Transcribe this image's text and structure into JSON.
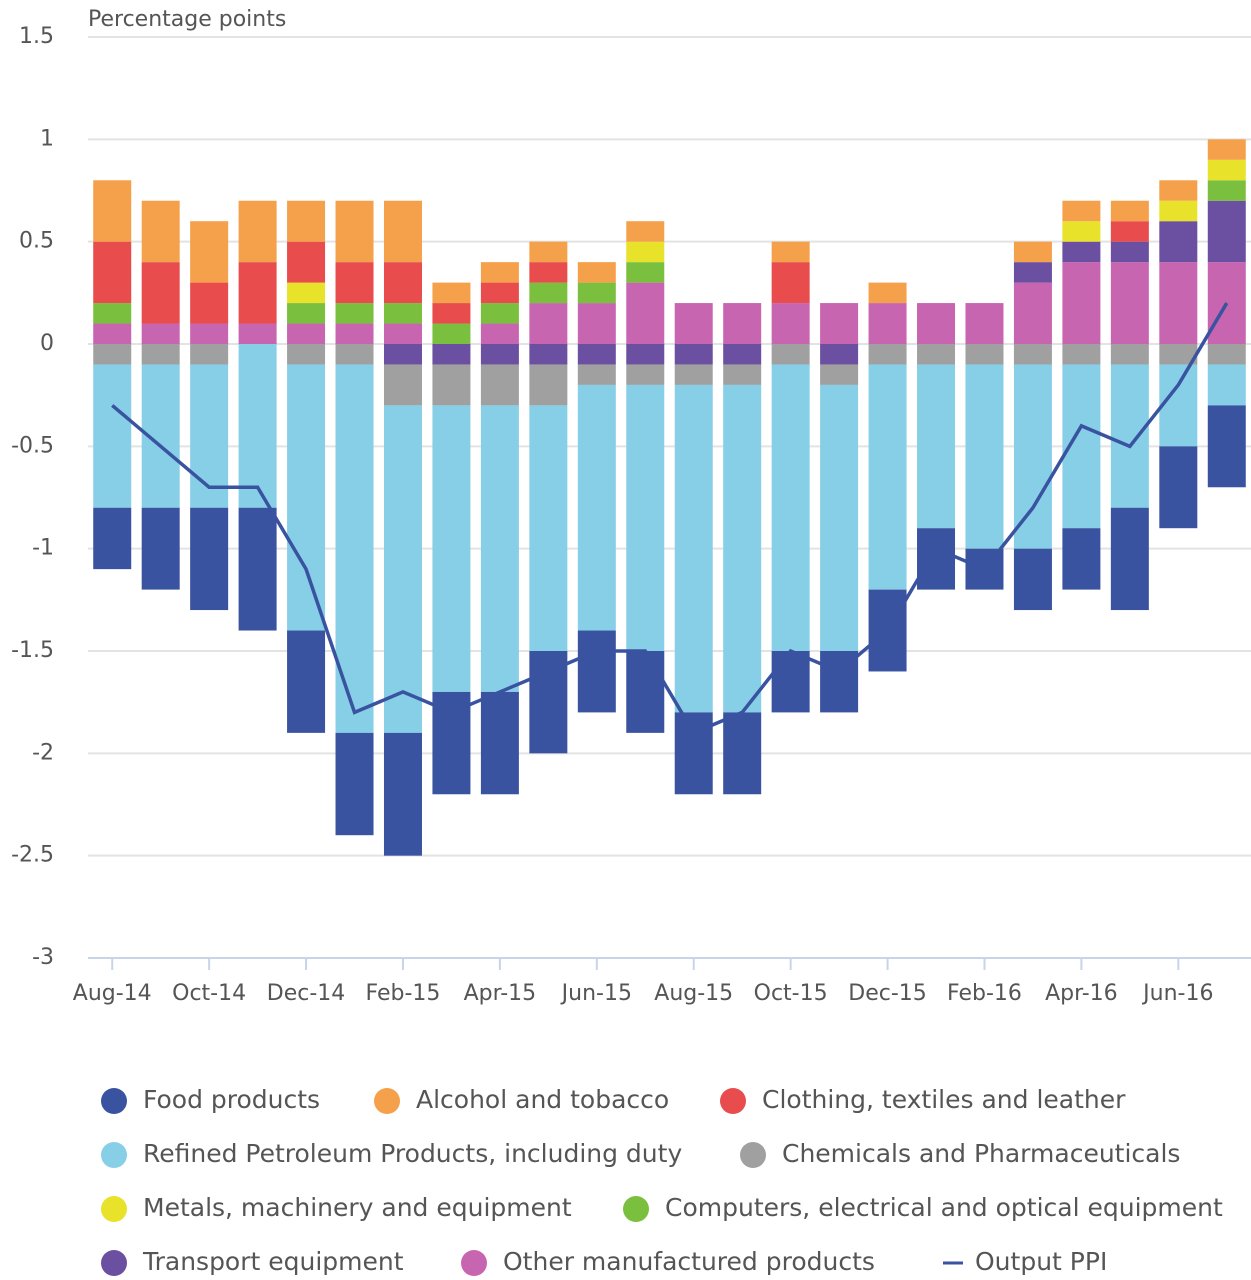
{
  "chart_data": {
    "type": "bar",
    "stacked": true,
    "ylabel": "Percentage points",
    "categories": [
      "Aug-14",
      null,
      "Oct-14",
      null,
      "Dec-14",
      null,
      "Feb-15",
      null,
      "Apr-15",
      null,
      "Jun-15",
      null,
      "Aug-15",
      null,
      "Oct-15",
      null,
      "Dec-15",
      null,
      "Feb-16",
      null,
      "Apr-16",
      null,
      "Jun-16",
      null
    ],
    "ylim": [
      -3,
      1.5
    ],
    "yticks": [
      -3,
      -2.5,
      -2,
      -1.5,
      -1,
      -0.5,
      0,
      0.5,
      1,
      1.5
    ],
    "grid": true,
    "series": [
      {
        "name": "Food products",
        "color": "#3a53a0",
        "values": [
          -0.3,
          -0.4,
          -0.5,
          -0.6,
          -0.5,
          -0.5,
          -0.6,
          -0.5,
          -0.5,
          -0.5,
          -0.4,
          -0.4,
          -0.4,
          -0.4,
          -0.3,
          -0.3,
          -0.4,
          -0.3,
          -0.2,
          -0.3,
          -0.3,
          -0.5,
          -0.4,
          -0.4
        ]
      },
      {
        "name": "Alcohol and tobacco",
        "color": "#f5a04a",
        "values": [
          0.3,
          0.3,
          0.3,
          0.3,
          0.2,
          0.3,
          0.3,
          0.1,
          0.1,
          0.1,
          0.1,
          0.1,
          0,
          0,
          0.1,
          0,
          0.1,
          0,
          0,
          0.1,
          0.1,
          0.1,
          0.1,
          0.1
        ]
      },
      {
        "name": "Clothing, textiles and leather",
        "color": "#e84c4c",
        "values": [
          0.3,
          0.3,
          0.2,
          0.3,
          0.2,
          0.2,
          0.2,
          0.1,
          0.1,
          0.1,
          0,
          0,
          0,
          0,
          0.2,
          0,
          0,
          0,
          0,
          0,
          0,
          0.1,
          0,
          0
        ]
      },
      {
        "name": "Refined Petroleum Products, including duty",
        "color": "#86cfe6",
        "values": [
          -0.7,
          -0.7,
          -0.7,
          -0.8,
          -1.3,
          -1.8,
          -1.6,
          -1.4,
          -1.4,
          -1.2,
          -1.2,
          -1.3,
          -1.6,
          -1.6,
          -1.4,
          -1.3,
          -1.1,
          -0.8,
          -0.9,
          -0.9,
          -0.8,
          -0.7,
          -0.4,
          -0.2
        ]
      },
      {
        "name": "Chemicals and Pharmaceuticals",
        "color": "#a0a0a0",
        "values": [
          -0.1,
          -0.1,
          -0.1,
          0,
          -0.1,
          -0.1,
          -0.2,
          -0.2,
          -0.2,
          -0.2,
          -0.1,
          -0.1,
          -0.1,
          -0.1,
          -0.1,
          -0.1,
          -0.1,
          -0.1,
          -0.1,
          -0.1,
          -0.1,
          -0.1,
          -0.1,
          -0.1
        ]
      },
      {
        "name": "Metals, machinery and equipment",
        "color": "#e8e22a",
        "values": [
          0,
          0,
          0,
          0,
          0.1,
          0,
          0,
          0,
          0,
          0,
          0,
          0.1,
          0,
          0,
          0,
          0,
          0,
          0,
          0,
          0,
          0.1,
          0,
          0.1,
          0.1
        ]
      },
      {
        "name": "Computers, electrical and optical equipment",
        "color": "#7bbf3e",
        "values": [
          0.1,
          0,
          0,
          0,
          0.1,
          0.1,
          0.1,
          0.1,
          0.1,
          0.1,
          0.1,
          0.1,
          0,
          0,
          0,
          0,
          0,
          0,
          0,
          0,
          0,
          0,
          0,
          0.1
        ]
      },
      {
        "name": "Transport equipment",
        "color": "#6b4fa0",
        "values": [
          0,
          0,
          0,
          0,
          0,
          0,
          -0.1,
          -0.1,
          -0.1,
          -0.1,
          -0.1,
          -0.1,
          -0.1,
          -0.1,
          0,
          -0.1,
          0,
          0,
          0,
          0.1,
          0.1,
          0.1,
          0.2,
          0.3
        ]
      },
      {
        "name": "Other manufactured products",
        "color": "#c865b0",
        "values": [
          0.1,
          0.1,
          0.1,
          0.1,
          0.1,
          0.1,
          0.1,
          0,
          0.1,
          0.2,
          0.2,
          0.3,
          0.2,
          0.2,
          0.2,
          0.2,
          0.2,
          0.2,
          0.2,
          0.3,
          0.4,
          0.4,
          0.4,
          0.4
        ]
      },
      {
        "name": "Output PPI",
        "type": "line",
        "color": "#3a53a0",
        "values": [
          -0.3,
          -0.5,
          -0.7,
          -0.7,
          -1.1,
          -1.8,
          -1.7,
          -1.8,
          -1.7,
          -1.6,
          -1.5,
          -1.5,
          -1.9,
          -1.8,
          -1.5,
          -1.6,
          -1.4,
          -1.0,
          -1.1,
          -0.8,
          -0.4,
          -0.5,
          -0.2,
          0.2
        ]
      }
    ]
  }
}
